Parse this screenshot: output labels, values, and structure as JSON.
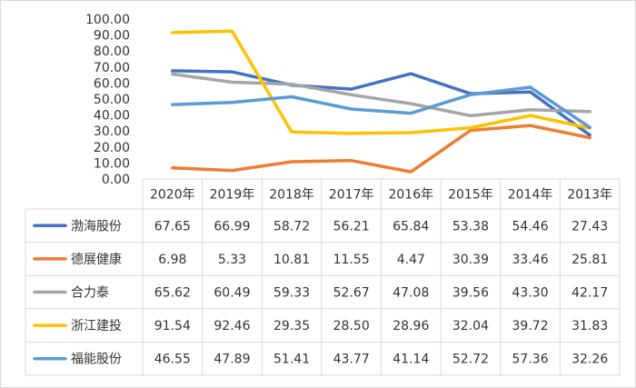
{
  "chart_data": {
    "type": "line",
    "categories": [
      "2020年",
      "2019年",
      "2018年",
      "2017年",
      "2016年",
      "2015年",
      "2014年",
      "2013年"
    ],
    "ylim": [
      0,
      100
    ],
    "ytick_labels": [
      "0.00",
      "10.00",
      "20.00",
      "30.00",
      "40.00",
      "50.00",
      "60.00",
      "70.00",
      "80.00",
      "90.00",
      "100.00"
    ],
    "legend": "data-table",
    "series": [
      {
        "name": "渤海股份",
        "color": "#4472c4",
        "values": [
          67.65,
          66.99,
          58.72,
          56.21,
          65.84,
          53.38,
          54.46,
          27.43
        ],
        "labels": [
          "67.65",
          "66.99",
          "58.72",
          "56.21",
          "65.84",
          "53.38",
          "54.46",
          "27.43"
        ]
      },
      {
        "name": "德展健康",
        "color": "#ed7d31",
        "values": [
          6.98,
          5.33,
          10.81,
          11.55,
          4.47,
          30.39,
          33.46,
          25.81
        ],
        "labels": [
          "6.98",
          "5.33",
          "10.81",
          "11.55",
          "4.47",
          "30.39",
          "33.46",
          "25.81"
        ]
      },
      {
        "name": "合力泰",
        "color": "#a5a5a5",
        "values": [
          65.62,
          60.49,
          59.33,
          52.67,
          47.08,
          39.56,
          43.3,
          42.17
        ],
        "labels": [
          "65.62",
          "60.49",
          "59.33",
          "52.67",
          "47.08",
          "39.56",
          "43.30",
          "42.17"
        ]
      },
      {
        "name": "浙江建投",
        "color": "#ffc000",
        "values": [
          91.54,
          92.46,
          29.35,
          28.5,
          28.96,
          32.04,
          39.72,
          31.83
        ],
        "labels": [
          "91.54",
          "92.46",
          "29.35",
          "28.50",
          "28.96",
          "32.04",
          "39.72",
          "31.83"
        ]
      },
      {
        "name": "福能股份",
        "color": "#5b9bd5",
        "values": [
          46.55,
          47.89,
          51.41,
          43.77,
          41.14,
          52.72,
          57.36,
          32.26
        ],
        "labels": [
          "46.55",
          "47.89",
          "51.41",
          "43.77",
          "41.14",
          "52.72",
          "57.36",
          "32.26"
        ]
      }
    ]
  }
}
